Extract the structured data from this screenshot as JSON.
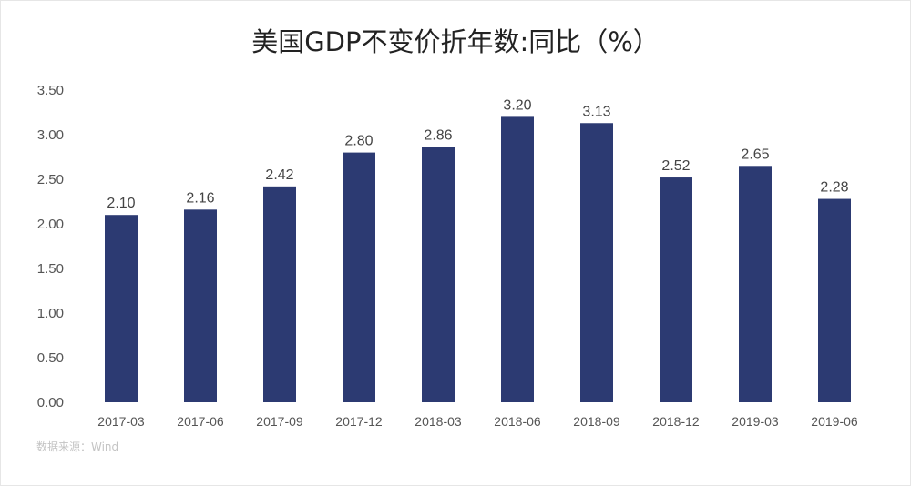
{
  "chart_data": {
    "type": "bar",
    "title": "美国GDP不变价折年数:同比（%）",
    "categories": [
      "2017-03",
      "2017-06",
      "2017-09",
      "2017-12",
      "2018-03",
      "2018-06",
      "2018-09",
      "2018-12",
      "2019-03",
      "2019-06"
    ],
    "values": [
      2.1,
      2.16,
      2.42,
      2.8,
      2.86,
      3.2,
      3.13,
      2.52,
      2.65,
      2.28
    ],
    "value_labels": [
      "2.10",
      "2.16",
      "2.42",
      "2.80",
      "2.86",
      "3.20",
      "3.13",
      "2.52",
      "2.65",
      "2.28"
    ],
    "yticks": [
      "0.00",
      "0.50",
      "1.00",
      "1.50",
      "2.00",
      "2.50",
      "3.00",
      "3.50"
    ],
    "ylim": [
      0,
      3.5
    ],
    "xlabel": "",
    "ylabel": "",
    "grid": false,
    "legend": "none",
    "bar_color": "#2C3A72"
  },
  "source": "数据来源：Wind"
}
